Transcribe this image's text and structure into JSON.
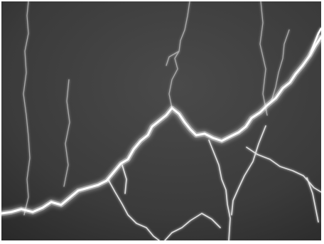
{
  "image": {
    "subject": "lightning-bolt",
    "palette": {
      "sky": "#3e3e3e",
      "sky_dark": "#1f1f1f",
      "bolt_core": "#ffffff",
      "bolt_glow": "#d8d8d8"
    }
  }
}
